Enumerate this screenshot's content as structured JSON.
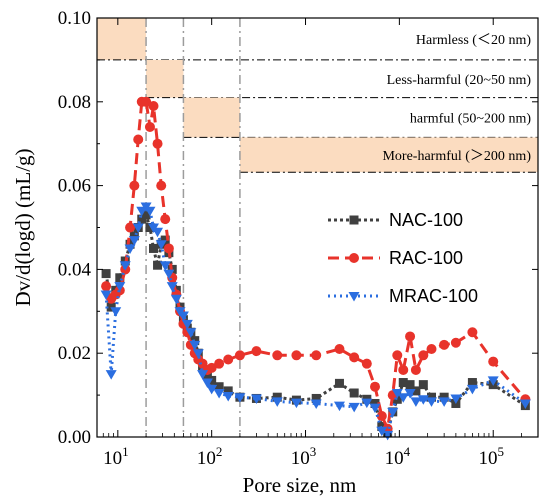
{
  "chart_data": {
    "type": "line",
    "xlabel": "Pore size, nm",
    "ylabel": "Dv/d(logd) (mL/g)",
    "xscale": "log",
    "xlim": [
      6,
      300000
    ],
    "ylim": [
      0,
      0.1
    ],
    "yticks": [
      "0.00",
      "0.02",
      "0.04",
      "0.06",
      "0.08",
      "0.10"
    ],
    "xticks": [
      {
        "base": "10",
        "exp": "1",
        "value": 10
      },
      {
        "base": "10",
        "exp": "2",
        "value": 100
      },
      {
        "base": "10",
        "exp": "3",
        "value": 1000
      },
      {
        "base": "10",
        "exp": "4",
        "value": 10000
      },
      {
        "base": "10",
        "exp": "5",
        "value": 100000
      }
    ],
    "legend_placement": "right",
    "grid": false,
    "reference_lines": [
      20,
      50,
      200
    ],
    "bands": [
      {
        "label": "Harmless (＜20 nm)",
        "x_range": [
          6,
          20
        ],
        "y_range": [
          0.09,
          0.1
        ]
      },
      {
        "label": "Less-harmful (20~50 nm)",
        "x_range": [
          20,
          50
        ],
        "y_range": [
          0.081,
          0.09
        ]
      },
      {
        "label": "harmful (50~200 nm)",
        "x_range": [
          50,
          200
        ],
        "y_range": [
          0.0715,
          0.081
        ]
      },
      {
        "label": "More-harmful (＞200 nm)",
        "x_range": [
          200,
          300000
        ],
        "y_range": [
          0.0632,
          0.0715
        ]
      }
    ],
    "series": [
      {
        "name": "NAC-100",
        "color": "#404040",
        "marker": "square",
        "dash": "3,3",
        "x": [
          7.5,
          8.5,
          9.5,
          10.5,
          12,
          13.5,
          15,
          16.5,
          18,
          20,
          22,
          24,
          26.5,
          29,
          32,
          35,
          38,
          42,
          46,
          50,
          55,
          60,
          66,
          72,
          80,
          90,
          100,
          120,
          150,
          200,
          300,
          500,
          800,
          1300,
          2300,
          3300,
          4500,
          5500,
          6500,
          7500,
          8500,
          9500,
          11000,
          13000,
          15000,
          18000,
          22000,
          30000,
          40000,
          60000,
          100000,
          220000
        ],
        "y": [
          0.039,
          0.031,
          0.035,
          0.038,
          0.042,
          0.046,
          0.048,
          0.05,
          0.052,
          0.053,
          0.05,
          0.045,
          0.041,
          0.046,
          0.047,
          0.044,
          0.04,
          0.035,
          0.031,
          0.028,
          0.026,
          0.025,
          0.023,
          0.02,
          0.017,
          0.015,
          0.0135,
          0.012,
          0.011,
          0.0095,
          0.0092,
          0.0095,
          0.0088,
          0.0092,
          0.0128,
          0.0105,
          0.009,
          0.008,
          0.0025,
          0.001,
          0.006,
          0.009,
          0.013,
          0.0125,
          0.011,
          0.0125,
          0.0095,
          0.0095,
          0.008,
          0.013,
          0.0125,
          0.0075
        ]
      },
      {
        "name": "RAC-100",
        "color": "#e8332b",
        "marker": "circle",
        "dash": "11,6",
        "x": [
          7.5,
          8.5,
          9.5,
          10.5,
          12,
          13.5,
          15,
          16.5,
          18,
          20,
          22,
          24,
          26.5,
          29,
          32,
          35,
          38,
          42,
          46,
          50,
          55,
          60,
          66,
          72,
          80,
          90,
          100,
          120,
          150,
          200,
          300,
          500,
          800,
          1300,
          2300,
          3300,
          4500,
          5500,
          6500,
          7500,
          8500,
          9500,
          11000,
          13000,
          15000,
          18000,
          22000,
          30000,
          40000,
          60000,
          100000,
          220000
        ],
        "y": [
          0.036,
          0.033,
          0.034,
          0.035,
          0.04,
          0.05,
          0.06,
          0.071,
          0.08,
          0.08,
          0.074,
          0.079,
          0.07,
          0.06,
          0.052,
          0.045,
          0.038,
          0.034,
          0.03,
          0.027,
          0.025,
          0.022,
          0.02,
          0.0185,
          0.0175,
          0.016,
          0.0165,
          0.0175,
          0.0185,
          0.0195,
          0.0205,
          0.0195,
          0.0195,
          0.0195,
          0.021,
          0.019,
          0.0175,
          0.012,
          0.005,
          0.002,
          0.01,
          0.0195,
          0.016,
          0.024,
          0.016,
          0.0195,
          0.021,
          0.022,
          0.0225,
          0.025,
          0.018,
          0.009
        ]
      },
      {
        "name": "MRAC-100",
        "color": "#2b6ee0",
        "marker": "triangle-down",
        "dash": "2,4",
        "x": [
          7.5,
          8.5,
          9.5,
          10.5,
          12,
          13.5,
          15,
          16.5,
          18,
          20,
          22,
          24,
          26.5,
          29,
          32,
          35,
          38,
          42,
          46,
          50,
          55,
          60,
          66,
          72,
          80,
          90,
          100,
          120,
          150,
          200,
          300,
          500,
          800,
          1300,
          2300,
          3300,
          4500,
          5500,
          6500,
          7500,
          8500,
          9500,
          11000,
          13000,
          15000,
          18000,
          22000,
          30000,
          40000,
          60000,
          100000,
          220000
        ],
        "y": [
          0.034,
          0.015,
          0.03,
          0.036,
          0.041,
          0.045,
          0.047,
          0.05,
          0.054,
          0.055,
          0.054,
          0.05,
          0.049,
          0.046,
          0.041,
          0.039,
          0.036,
          0.033,
          0.03,
          0.029,
          0.027,
          0.025,
          0.022,
          0.02,
          0.015,
          0.013,
          0.0115,
          0.0105,
          0.0098,
          0.0095,
          0.0092,
          0.0085,
          0.0082,
          0.008,
          0.0075,
          0.0072,
          0.0082,
          0.007,
          0.0015,
          0.0005,
          0.006,
          0.0105,
          0.0095,
          0.0105,
          0.0085,
          0.009,
          0.0085,
          0.0085,
          0.0092,
          0.0115,
          0.0135,
          0.008
        ]
      }
    ]
  }
}
